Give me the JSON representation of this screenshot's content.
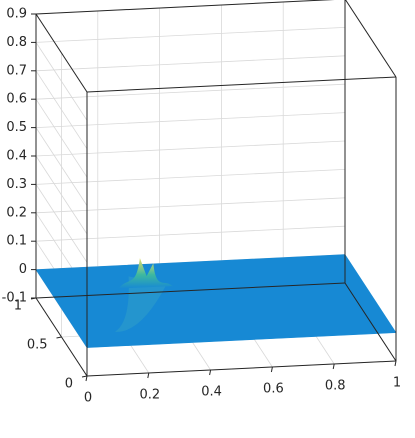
{
  "chart_data": {
    "type": "surface",
    "title": "",
    "xlabel": "",
    "ylabel": "",
    "zlabel": "",
    "grid": true,
    "box": true,
    "xlim": [
      0,
      1
    ],
    "ylim": [
      0,
      1
    ],
    "zlim": [
      -0.1,
      0.9
    ],
    "x_ticks": [
      "0",
      "0.2",
      "0.4",
      "0.6",
      "0.8",
      "1"
    ],
    "y_ticks": [
      "0",
      "0.5",
      "1"
    ],
    "z_ticks": [
      "-0.1",
      "0",
      "0.1",
      "0.2",
      "0.3",
      "0.4",
      "0.5",
      "0.6",
      "0.7",
      "0.8",
      "0.9"
    ],
    "surface": {
      "base_value": 0,
      "base_color": "#1789d4",
      "peak_color": "#e6dd6a",
      "peaks": [
        {
          "x": 0.3,
          "y": 0.78,
          "z": 0.085
        },
        {
          "x": 0.34,
          "y": 0.76,
          "z": 0.07
        }
      ],
      "ridge": {
        "x_start": 0.12,
        "y_start": 0.18,
        "x_end": 0.32,
        "y_end": 0.77
      }
    }
  }
}
